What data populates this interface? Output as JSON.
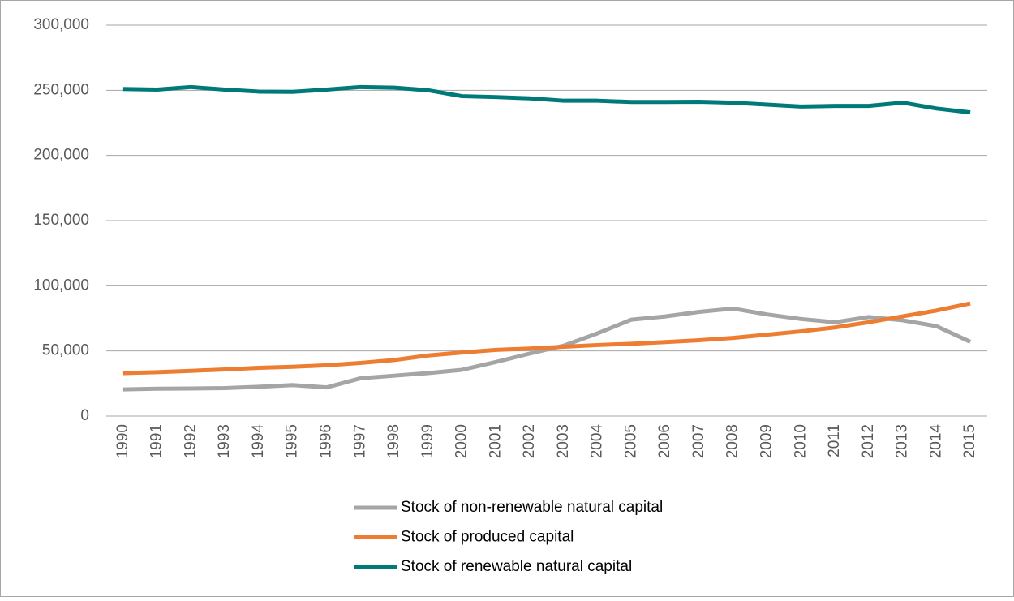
{
  "chart_data": {
    "type": "line",
    "x": [
      "1990",
      "1991",
      "1992",
      "1993",
      "1994",
      "1995",
      "1996",
      "1997",
      "1998",
      "1999",
      "2000",
      "2001",
      "2002",
      "2003",
      "2004",
      "2005",
      "2006",
      "2007",
      "2008",
      "2009",
      "2010",
      "2011",
      "2012",
      "2013",
      "2014",
      "2015"
    ],
    "series": [
      {
        "name": "Stock of non-renewable natural capital",
        "color": "#a5a5a5",
        "values": [
          20500,
          21000,
          21200,
          21500,
          22500,
          23800,
          22000,
          29000,
          31000,
          33000,
          35500,
          41500,
          48000,
          54000,
          63500,
          74000,
          76500,
          80000,
          82500,
          78000,
          74500,
          72000,
          76000,
          73500,
          69000,
          57000
        ]
      },
      {
        "name": "Stock of produced capital",
        "color": "#ed7d31",
        "values": [
          33000,
          33700,
          34700,
          35800,
          37000,
          37800,
          39000,
          40800,
          43000,
          46500,
          48800,
          50800,
          51800,
          53200,
          54500,
          55500,
          56800,
          58200,
          60000,
          62500,
          65000,
          68000,
          72000,
          76500,
          81000,
          86500
        ]
      },
      {
        "name": "Stock of renewable natural capital",
        "color": "#007a78",
        "values": [
          251000,
          250500,
          252500,
          250500,
          249000,
          248800,
          250500,
          252500,
          252000,
          250000,
          245500,
          244800,
          243800,
          242000,
          242000,
          241000,
          241000,
          241200,
          240500,
          239000,
          237500,
          238000,
          238000,
          240500,
          236000,
          233000
        ]
      }
    ],
    "ylim": [
      0,
      300000
    ],
    "yticks": [
      0,
      {
        "value": 50000,
        "label": "50,000"
      },
      {
        "value": 100000,
        "label": "100,000"
      },
      {
        "value": 150000,
        "label": "150,000"
      },
      {
        "value": 200000,
        "label": "200,000"
      },
      {
        "value": 250000,
        "label": "250,000"
      },
      {
        "value": 300000,
        "label": "300,000"
      }
    ],
    "grid": true,
    "legend": "bottom"
  }
}
